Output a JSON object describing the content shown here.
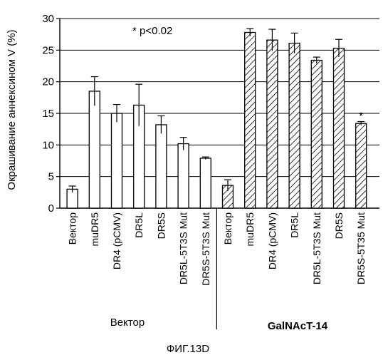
{
  "chart_data": {
    "type": "bar",
    "ylabel": "Окрашивание аннексином V (%)",
    "ylim": [
      0,
      30
    ],
    "yticks": [
      0,
      5,
      10,
      15,
      20,
      25,
      30
    ],
    "grid": true,
    "annotation": "* p<0.02",
    "groups": [
      {
        "label": "Вектор",
        "bold": false,
        "pattern": "none",
        "categories": [
          "Вектор",
          "muDR5",
          "DR4 (pCMV)",
          "DR5L",
          "DR5S",
          "DR5L-5T3S Mut",
          "DR5S-5T3S Mut"
        ],
        "values": [
          3.0,
          18.5,
          15.0,
          16.3,
          13.2,
          10.2,
          7.9
        ],
        "errors": [
          0.5,
          2.3,
          1.4,
          3.3,
          1.4,
          1.0,
          0.2
        ]
      },
      {
        "label": "GalNAcT-14",
        "bold": true,
        "pattern": "hatch",
        "categories": [
          "Вектор",
          "muDR5",
          "DR4 (pCMV)",
          "DR5L",
          "DR5L-5T3S Mut",
          "DR5S",
          "DR5S-5T35 Mut"
        ],
        "values": [
          3.6,
          27.8,
          26.6,
          26.1,
          23.4,
          25.3,
          13.4
        ],
        "errors": [
          0.9,
          0.6,
          1.7,
          1.6,
          0.5,
          1.4,
          0.3
        ],
        "marks": [
          "",
          "",
          "",
          "",
          "",
          "",
          "*"
        ]
      }
    ]
  },
  "figure_caption": "ФИГ.13D",
  "colors": {
    "bar_fill": "#ffffff",
    "stroke": "#000000",
    "grid": "#000000"
  }
}
